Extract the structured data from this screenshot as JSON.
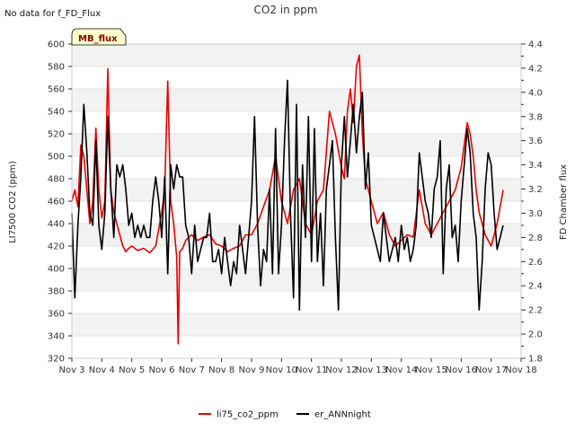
{
  "note": "No data for f_FD_Flux",
  "badge": "MB_flux",
  "chart_data": {
    "type": "line",
    "title": "CO2 in ppm",
    "xlabel": "",
    "ylabel": "LI7500 CO2 (ppm)",
    "y2label": "FD Chamber flux",
    "x_ticks": [
      "Nov 3",
      "Nov 4",
      "Nov 5",
      "Nov 6",
      "Nov 7",
      "Nov 8",
      "Nov 9",
      "Nov 10",
      "Nov 11",
      "Nov 12",
      "Nov 13",
      "Nov 14",
      "Nov 15",
      "Nov 16",
      "Nov 17",
      "Nov 18"
    ],
    "xlim": [
      3,
      18
    ],
    "ylim": [
      320,
      600
    ],
    "y_ticks": [
      320,
      340,
      360,
      380,
      400,
      420,
      440,
      460,
      480,
      500,
      520,
      540,
      560,
      580,
      600
    ],
    "y2lim": [
      1.8,
      4.4
    ],
    "y2_ticks": [
      "1.8",
      "2.0",
      "2.2",
      "2.4",
      "2.6",
      "2.8",
      "3.0",
      "3.2",
      "3.4",
      "3.6",
      "3.8",
      "4.0",
      "4.2",
      "4.4"
    ],
    "grid": true,
    "legend_position": "bottom-center",
    "series": [
      {
        "name": "li75_co2_ppm",
        "color": "#ee0000",
        "axis": "left",
        "x": [
          3.0,
          3.1,
          3.2,
          3.3,
          3.4,
          3.5,
          3.6,
          3.7,
          3.8,
          3.9,
          4.0,
          4.1,
          4.2,
          4.3,
          4.4,
          4.5,
          4.6,
          4.7,
          4.8,
          4.9,
          5.0,
          5.2,
          5.4,
          5.6,
          5.8,
          6.0,
          6.1,
          6.2,
          6.3,
          6.4,
          6.5,
          6.55,
          6.6,
          6.7,
          6.8,
          6.9,
          7.0,
          7.2,
          7.4,
          7.6,
          7.8,
          8.0,
          8.2,
          8.4,
          8.6,
          8.8,
          9.0,
          9.2,
          9.4,
          9.6,
          9.8,
          10.0,
          10.2,
          10.4,
          10.6,
          10.8,
          11.0,
          11.2,
          11.4,
          11.6,
          11.8,
          12.0,
          12.1,
          12.2,
          12.3,
          12.4,
          12.5,
          12.6,
          12.7,
          12.8,
          13.0,
          13.2,
          13.4,
          13.6,
          13.8,
          14.0,
          14.2,
          14.4,
          14.6,
          14.8,
          15.0,
          15.2,
          15.4,
          15.6,
          15.8,
          16.0,
          16.1,
          16.2,
          16.3,
          16.4,
          16.5,
          16.6,
          16.8,
          17.0,
          17.2,
          17.4
        ],
        "values": [
          460,
          470,
          455,
          510,
          500,
          470,
          440,
          460,
          525,
          470,
          445,
          460,
          578,
          470,
          450,
          440,
          430,
          420,
          415,
          418,
          420,
          416,
          418,
          414,
          420,
          450,
          470,
          567,
          460,
          440,
          410,
          333,
          415,
          418,
          425,
          428,
          430,
          425,
          428,
          430,
          422,
          420,
          415,
          418,
          420,
          430,
          430,
          440,
          455,
          470,
          500,
          460,
          440,
          470,
          480,
          440,
          430,
          460,
          470,
          540,
          520,
          490,
          480,
          540,
          560,
          530,
          580,
          590,
          520,
          480,
          460,
          440,
          450,
          430,
          420,
          425,
          430,
          428,
          470,
          440,
          430,
          440,
          450,
          460,
          470,
          490,
          510,
          530,
          520,
          500,
          470,
          450,
          430,
          420,
          440,
          470
        ]
      },
      {
        "name": "er_ANNnight",
        "color": "#000000",
        "axis": "right",
        "x": [
          3.0,
          3.1,
          3.2,
          3.3,
          3.4,
          3.5,
          3.6,
          3.7,
          3.8,
          3.9,
          4.0,
          4.1,
          4.2,
          4.3,
          4.4,
          4.5,
          4.6,
          4.7,
          4.8,
          4.9,
          5.0,
          5.1,
          5.2,
          5.3,
          5.4,
          5.5,
          5.6,
          5.7,
          5.8,
          5.9,
          6.0,
          6.1,
          6.2,
          6.3,
          6.4,
          6.5,
          6.6,
          6.7,
          6.8,
          6.9,
          7.0,
          7.1,
          7.2,
          7.3,
          7.4,
          7.5,
          7.6,
          7.7,
          7.8,
          7.9,
          8.0,
          8.1,
          8.2,
          8.3,
          8.4,
          8.5,
          8.6,
          8.7,
          8.8,
          8.9,
          9.0,
          9.1,
          9.2,
          9.3,
          9.4,
          9.5,
          9.6,
          9.7,
          9.8,
          9.9,
          10.0,
          10.1,
          10.2,
          10.3,
          10.4,
          10.5,
          10.6,
          10.7,
          10.8,
          10.9,
          11.0,
          11.1,
          11.2,
          11.3,
          11.4,
          11.5,
          11.6,
          11.7,
          11.8,
          11.9,
          12.0,
          12.1,
          12.2,
          12.3,
          12.4,
          12.5,
          12.6,
          12.7,
          12.8,
          12.9,
          13.0,
          13.1,
          13.2,
          13.3,
          13.4,
          13.5,
          13.6,
          13.7,
          13.8,
          13.9,
          14.0,
          14.1,
          14.2,
          14.3,
          14.4,
          14.5,
          14.6,
          14.7,
          14.8,
          14.9,
          15.0,
          15.1,
          15.2,
          15.3,
          15.4,
          15.5,
          15.6,
          15.7,
          15.8,
          15.9,
          16.0,
          16.1,
          16.2,
          16.3,
          16.4,
          16.5,
          16.6,
          16.7,
          16.8,
          16.9,
          17.0,
          17.1,
          17.2,
          17.3,
          17.4
        ],
        "values": [
          3.0,
          2.3,
          2.9,
          3.3,
          3.9,
          3.5,
          3.0,
          2.9,
          3.6,
          2.9,
          2.7,
          3.0,
          3.8,
          3.2,
          2.8,
          3.4,
          3.3,
          3.4,
          3.2,
          2.9,
          3.0,
          2.8,
          2.9,
          2.8,
          2.9,
          2.8,
          2.8,
          3.1,
          3.3,
          3.1,
          2.8,
          3.3,
          2.5,
          3.4,
          3.2,
          3.4,
          3.3,
          3.3,
          2.9,
          2.8,
          2.5,
          2.9,
          2.6,
          2.7,
          2.8,
          2.8,
          3.0,
          2.6,
          2.6,
          2.7,
          2.5,
          2.8,
          2.6,
          2.4,
          2.6,
          2.5,
          2.9,
          2.7,
          2.5,
          2.8,
          3.1,
          3.8,
          2.9,
          2.4,
          2.7,
          2.6,
          3.2,
          2.5,
          3.7,
          2.5,
          2.9,
          3.6,
          4.1,
          3.0,
          2.3,
          3.9,
          2.2,
          3.4,
          2.8,
          3.8,
          2.6,
          3.7,
          2.6,
          3.0,
          2.4,
          3.2,
          3.4,
          3.6,
          2.8,
          2.2,
          3.4,
          3.8,
          3.3,
          3.6,
          3.9,
          3.5,
          3.8,
          4.0,
          3.2,
          3.5,
          2.9,
          2.8,
          2.7,
          2.6,
          3.0,
          2.8,
          2.6,
          2.7,
          2.8,
          2.6,
          2.9,
          2.7,
          2.8,
          2.6,
          2.7,
          2.9,
          3.5,
          3.3,
          3.1,
          3.0,
          2.8,
          3.2,
          3.3,
          3.6,
          2.5,
          3.2,
          3.4,
          2.8,
          2.9,
          2.6,
          3.1,
          3.4,
          3.7,
          3.5,
          3.0,
          2.8,
          2.2,
          2.6,
          3.2,
          3.5,
          3.4,
          3.0,
          2.7,
          2.8,
          2.9
        ]
      }
    ]
  }
}
